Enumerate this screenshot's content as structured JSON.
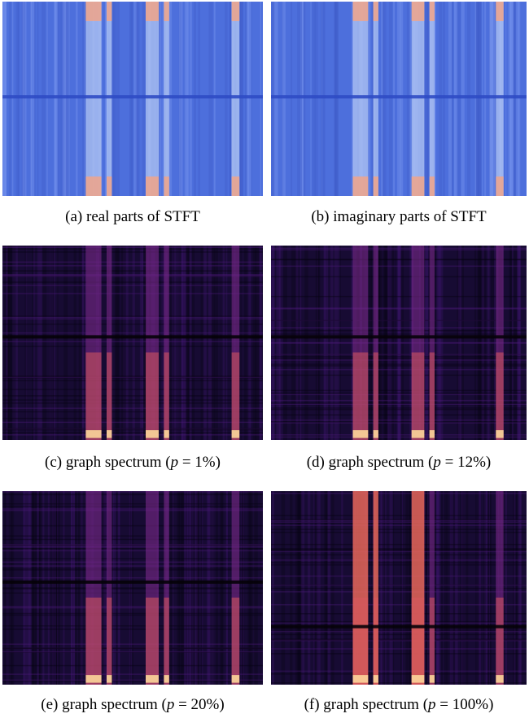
{
  "figure": {
    "panels": [
      {
        "caption": [
          {
            "text": "(a) real parts of STFT"
          }
        ],
        "colormap": "coolwarm"
      },
      {
        "caption": [
          {
            "text": "(b) imaginary parts of STFT"
          }
        ],
        "colormap": "coolwarm"
      },
      {
        "caption": [
          {
            "text": "(c) graph spectrum ("
          },
          {
            "text": "p",
            "italic": true
          },
          {
            "text": " = 1%)"
          }
        ],
        "colormap": "magma"
      },
      {
        "caption": [
          {
            "text": "(d) graph spectrum ("
          },
          {
            "text": "p",
            "italic": true
          },
          {
            "text": " = 12%)"
          }
        ],
        "colormap": "magma"
      },
      {
        "caption": [
          {
            "text": "(e) graph spectrum ("
          },
          {
            "text": "p",
            "italic": true
          },
          {
            "text": " = 20%)"
          }
        ],
        "colormap": "magma"
      },
      {
        "caption": [
          {
            "text": "(f) graph spectrum ("
          },
          {
            "text": "p",
            "italic": true
          },
          {
            "text": " = 100%)"
          }
        ],
        "colormap": "magma"
      }
    ]
  }
}
